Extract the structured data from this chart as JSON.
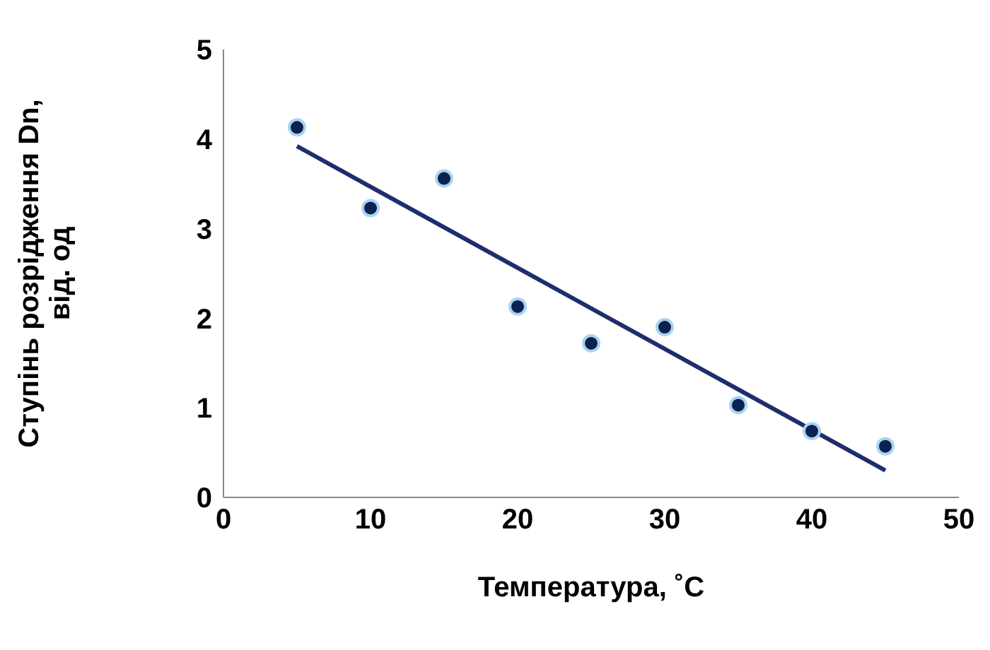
{
  "chart_data": {
    "type": "scatter",
    "xlabel": "Температура, ˚С",
    "ylabel": "Ступінь розрідження Dn, від. од",
    "x": [
      5,
      10,
      15,
      20,
      25,
      30,
      35,
      40,
      45
    ],
    "series": [
      {
        "color": "#0b2150",
        "values": [
          4.13,
          3.23,
          3.56,
          2.13,
          1.72,
          1.9,
          1.03,
          0.74,
          0.57
        ],
        "marker": "circle"
      },
      {
        "type": "line",
        "color": "#1f2d6e",
        "x": [
          5,
          45
        ],
        "values": [
          3.92,
          0.3
        ],
        "marker": "none",
        "line_style": "solid"
      }
    ],
    "xlim": [
      0,
      50
    ],
    "xticks": [
      0,
      10,
      20,
      30,
      40,
      50
    ],
    "ylim": [
      0,
      5
    ],
    "yticks": [
      0,
      1,
      2,
      3,
      4,
      5
    ],
    "grid": false,
    "legend": false
  }
}
